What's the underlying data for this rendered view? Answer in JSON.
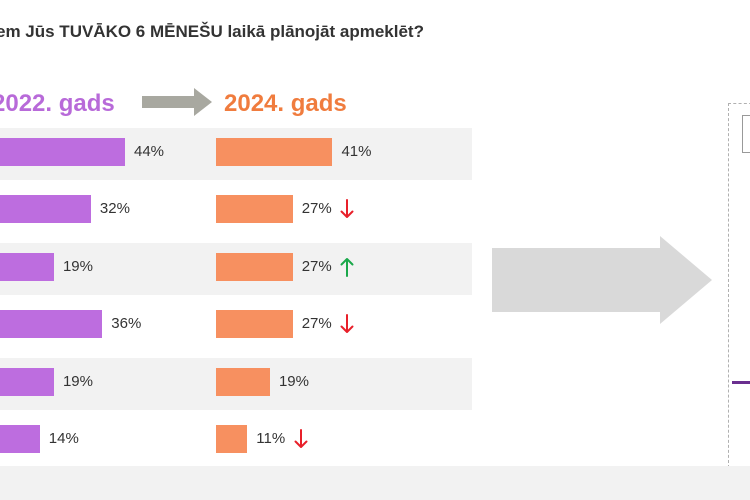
{
  "question": "em Jūs TUVĀKO 6 MĒNEŠU laikā plānojāt apmeklēt?",
  "colors": {
    "purple": "#bd6ddf",
    "orange": "#f79060",
    "down_arrow": "#e8202a",
    "up_arrow": "#1aa84a"
  },
  "chart_data": {
    "type": "bar",
    "orientation": "horizontal",
    "series": [
      {
        "name": "2022. gads",
        "values": [
          44,
          32,
          19,
          36,
          19,
          14
        ],
        "labels": [
          "44%",
          "32%",
          "19%",
          "36%",
          "19%",
          "14%"
        ]
      },
      {
        "name": "2024. gads",
        "values": [
          41,
          27,
          27,
          27,
          19,
          11
        ],
        "labels": [
          "41%",
          "27%",
          "27%",
          "27%",
          "19%",
          "11%"
        ]
      }
    ],
    "trend": [
      "none",
      "down",
      "up",
      "down",
      "none",
      "down"
    ],
    "grid": false
  }
}
